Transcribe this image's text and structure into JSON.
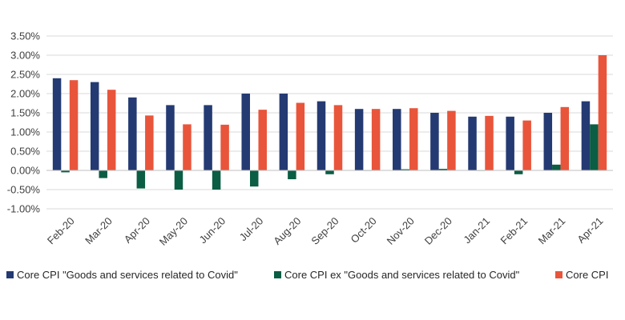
{
  "chart_data": {
    "type": "bar",
    "categories": [
      "Feb-20",
      "Mar-20",
      "Apr-20",
      "May-20",
      "Jun-20",
      "Jul-20",
      "Aug-20",
      "Sep-20",
      "Oct-20",
      "Nov-20",
      "Dec-20",
      "Jan-21",
      "Feb-21",
      "Mar-21",
      "Apr-21"
    ],
    "series": [
      {
        "name": "Core CPI \"Goods and services related to Covid\"",
        "color": "#243a72",
        "values": [
          2.4,
          2.3,
          1.9,
          1.7,
          1.7,
          2.0,
          2.0,
          1.8,
          1.6,
          1.6,
          1.5,
          1.4,
          1.4,
          1.5,
          1.8
        ]
      },
      {
        "name": "Core CPI ex \"Goods and services related to Covid\"",
        "color": "#0b5d43",
        "values": [
          -0.05,
          -0.2,
          -0.47,
          -0.5,
          -0.5,
          -0.42,
          -0.23,
          -0.1,
          0.0,
          0.03,
          0.04,
          0.0,
          -0.1,
          0.15,
          1.2
        ]
      },
      {
        "name": "Core CPI",
        "color": "#e8553b",
        "values": [
          2.35,
          2.1,
          1.43,
          1.2,
          1.19,
          1.58,
          1.76,
          1.7,
          1.6,
          1.62,
          1.55,
          1.42,
          1.3,
          1.65,
          3.0
        ]
      }
    ],
    "yticks": [
      "3.50%",
      "3.00%",
      "2.50%",
      "2.00%",
      "1.50%",
      "1.00%",
      "0.50%",
      "0.00%",
      "-0.50%",
      "-1.00%"
    ],
    "ylim": [
      -1.0,
      3.5
    ],
    "grid": true,
    "legend_position": "bottom"
  }
}
